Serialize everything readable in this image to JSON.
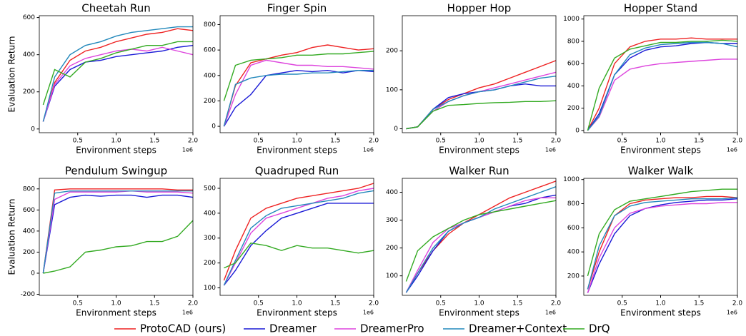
{
  "legend": [
    {
      "name": "ProtoCAD (ours)",
      "color": "#ee2222"
    },
    {
      "name": "Dreamer",
      "color": "#1a1ad6"
    },
    {
      "name": "DreamerPro",
      "color": "#dd44dd"
    },
    {
      "name": "Dreamer+Context",
      "color": "#2288bb"
    },
    {
      "name": "DrQ",
      "color": "#33aa22"
    }
  ],
  "chart_data": [
    {
      "type": "line",
      "title": "Cheetah Run",
      "xlabel": "Environment steps",
      "x_offset_label": "1e6",
      "ylabel": "Evaluation Return",
      "x": [
        0.05,
        0.2,
        0.4,
        0.6,
        0.8,
        1.0,
        1.2,
        1.4,
        1.6,
        1.8,
        2.0
      ],
      "xlim": [
        0,
        2.0
      ],
      "xticks": [
        0.5,
        {
          "value": 1,
          "label": "1.0"
        },
        1.5,
        {
          "value": 2,
          "label": "2.0"
        }
      ],
      "ylim": [
        -20,
        610
      ],
      "yticks": [
        0,
        200,
        400,
        600
      ],
      "series": [
        {
          "values": [
            40,
            250,
            370,
            420,
            440,
            470,
            490,
            510,
            520,
            540,
            530
          ]
        },
        {
          "values": [
            40,
            230,
            320,
            360,
            370,
            390,
            400,
            410,
            420,
            440,
            450
          ]
        },
        {
          "values": [
            40,
            240,
            340,
            380,
            400,
            420,
            430,
            420,
            440,
            420,
            400
          ]
        },
        {
          "values": [
            40,
            280,
            400,
            450,
            470,
            500,
            520,
            530,
            540,
            550,
            550
          ]
        },
        {
          "values": [
            130,
            320,
            280,
            360,
            380,
            410,
            430,
            450,
            450,
            470,
            470
          ]
        }
      ]
    },
    {
      "type": "line",
      "title": "Finger Spin",
      "xlabel": "Environment steps",
      "x_offset_label": "1e6",
      "x": [
        0.05,
        0.2,
        0.4,
        0.6,
        0.8,
        1.0,
        1.2,
        1.4,
        1.6,
        1.8,
        2.0
      ],
      "xlim": [
        0,
        2.0
      ],
      "xticks": [
        0.5,
        {
          "value": 1,
          "label": "1.0"
        },
        1.5,
        {
          "value": 2,
          "label": "2.0"
        }
      ],
      "ylim": [
        -50,
        870
      ],
      "yticks": [
        0,
        200,
        400,
        600,
        800
      ],
      "series": [
        {
          "values": [
            0,
            320,
            500,
            530,
            560,
            580,
            620,
            640,
            620,
            600,
            610
          ]
        },
        {
          "values": [
            0,
            150,
            250,
            400,
            420,
            440,
            430,
            440,
            420,
            440,
            430
          ]
        },
        {
          "values": [
            0,
            250,
            480,
            520,
            500,
            480,
            480,
            470,
            470,
            460,
            450
          ]
        },
        {
          "values": [
            0,
            330,
            380,
            400,
            410,
            410,
            420,
            420,
            430,
            440,
            440
          ]
        },
        {
          "values": [
            200,
            480,
            520,
            530,
            540,
            560,
            560,
            570,
            570,
            580,
            590
          ]
        }
      ]
    },
    {
      "type": "line",
      "title": "Hopper Hop",
      "xlabel": "Environment steps",
      "x_offset_label": "1e6",
      "x": [
        0.05,
        0.2,
        0.4,
        0.6,
        0.8,
        1.0,
        1.2,
        1.4,
        1.6,
        1.8,
        2.0
      ],
      "xlim": [
        0,
        2.0
      ],
      "xticks": [
        0.5,
        {
          "value": 1,
          "label": "1.0"
        },
        1.5,
        {
          "value": 2,
          "label": "2.0"
        }
      ],
      "ylim": [
        -10,
        290
      ],
      "yticks": [
        0,
        100,
        200
      ],
      "series": [
        {
          "values": [
            0,
            5,
            50,
            75,
            90,
            105,
            115,
            130,
            145,
            160,
            175
          ]
        },
        {
          "values": [
            0,
            5,
            50,
            80,
            90,
            95,
            100,
            110,
            115,
            110,
            110
          ]
        },
        {
          "values": [
            0,
            5,
            45,
            70,
            85,
            95,
            105,
            115,
            125,
            135,
            145
          ]
        },
        {
          "values": [
            0,
            5,
            50,
            70,
            85,
            95,
            100,
            110,
            120,
            130,
            135
          ]
        },
        {
          "values": [
            0,
            5,
            45,
            60,
            62,
            65,
            67,
            68,
            70,
            70,
            72
          ]
        }
      ]
    },
    {
      "type": "line",
      "title": "Hopper Stand",
      "xlabel": "Environment steps",
      "x_offset_label": "1e6",
      "x": [
        0.05,
        0.2,
        0.4,
        0.6,
        0.8,
        1.0,
        1.2,
        1.4,
        1.6,
        1.8,
        2.0
      ],
      "xlim": [
        0,
        2.0
      ],
      "xticks": [
        0.5,
        {
          "value": 1,
          "label": "1.0"
        },
        1.5,
        {
          "value": 2,
          "label": "2.0"
        }
      ],
      "ylim": [
        -20,
        1030
      ],
      "yticks": [
        0,
        200,
        400,
        600,
        800,
        1000
      ],
      "series": [
        {
          "values": [
            0,
            200,
            600,
            750,
            800,
            820,
            820,
            830,
            820,
            820,
            820
          ]
        },
        {
          "values": [
            0,
            150,
            500,
            650,
            720,
            750,
            760,
            780,
            790,
            780,
            780
          ]
        },
        {
          "values": [
            0,
            120,
            450,
            550,
            580,
            600,
            610,
            620,
            630,
            640,
            640
          ]
        },
        {
          "values": [
            0,
            130,
            500,
            680,
            740,
            770,
            780,
            790,
            790,
            780,
            750
          ]
        },
        {
          "values": [
            0,
            380,
            650,
            730,
            760,
            790,
            790,
            800,
            800,
            810,
            800
          ]
        }
      ]
    },
    {
      "type": "line",
      "title": "Pendulum Swingup",
      "xlabel": "Environment steps",
      "x_offset_label": "1e6",
      "ylabel": "Evaluation Return",
      "x": [
        0.05,
        0.2,
        0.4,
        0.6,
        0.8,
        1.0,
        1.2,
        1.4,
        1.6,
        1.8,
        2.0
      ],
      "xlim": [
        0,
        2.0
      ],
      "xticks": [
        0.5,
        {
          "value": 1,
          "label": "1.0"
        },
        1.5,
        {
          "value": 2,
          "label": "2.0"
        }
      ],
      "ylim": [
        -210,
        900
      ],
      "yticks": [
        -200,
        0,
        200,
        400,
        600,
        800
      ],
      "series": [
        {
          "values": [
            0,
            790,
            800,
            800,
            800,
            800,
            800,
            800,
            800,
            790,
            790
          ]
        },
        {
          "values": [
            0,
            650,
            720,
            740,
            730,
            740,
            740,
            720,
            740,
            740,
            720
          ]
        },
        {
          "values": [
            0,
            700,
            770,
            770,
            770,
            770,
            780,
            770,
            770,
            770,
            760
          ]
        },
        {
          "values": [
            0,
            760,
            780,
            780,
            780,
            780,
            780,
            780,
            780,
            780,
            780
          ]
        },
        {
          "values": [
            0,
            20,
            60,
            200,
            220,
            250,
            260,
            300,
            300,
            350,
            500
          ]
        }
      ]
    },
    {
      "type": "line",
      "title": "Quadruped Run",
      "xlabel": "Environment steps",
      "x_offset_label": "1e6",
      "x": [
        0.05,
        0.2,
        0.4,
        0.6,
        0.8,
        1.0,
        1.2,
        1.4,
        1.6,
        1.8,
        2.0
      ],
      "xlim": [
        0,
        2.0
      ],
      "xticks": [
        0.5,
        {
          "value": 1,
          "label": "1.0"
        },
        1.5,
        {
          "value": 2,
          "label": "2.0"
        }
      ],
      "ylim": [
        70,
        540
      ],
      "yticks": [
        100,
        200,
        300,
        400,
        500
      ],
      "series": [
        {
          "values": [
            130,
            250,
            380,
            420,
            440,
            460,
            470,
            480,
            490,
            500,
            520
          ]
        },
        {
          "values": [
            110,
            170,
            270,
            330,
            380,
            400,
            420,
            440,
            440,
            440,
            440
          ]
        },
        {
          "values": [
            110,
            200,
            320,
            380,
            400,
            420,
            440,
            460,
            470,
            490,
            500
          ]
        },
        {
          "values": [
            110,
            210,
            340,
            390,
            420,
            430,
            440,
            450,
            460,
            480,
            490
          ]
        },
        {
          "values": [
            180,
            200,
            280,
            270,
            250,
            270,
            260,
            260,
            250,
            240,
            250
          ]
        }
      ]
    },
    {
      "type": "line",
      "title": "Walker Run",
      "xlabel": "Environment steps",
      "x_offset_label": "1e6",
      "x": [
        0.05,
        0.2,
        0.4,
        0.6,
        0.8,
        1.0,
        1.2,
        1.4,
        1.6,
        1.8,
        2.0
      ],
      "xlim": [
        0,
        2.0
      ],
      "xticks": [
        0.5,
        {
          "value": 1,
          "label": "1.0"
        },
        1.5,
        {
          "value": 2,
          "label": "2.0"
        }
      ],
      "ylim": [
        30,
        450
      ],
      "yticks": [
        100,
        200,
        300,
        400
      ],
      "series": [
        {
          "values": [
            40,
            110,
            190,
            250,
            290,
            320,
            350,
            380,
            400,
            420,
            440
          ]
        },
        {
          "values": [
            40,
            100,
            190,
            260,
            290,
            310,
            330,
            350,
            360,
            380,
            390
          ]
        },
        {
          "values": [
            40,
            120,
            220,
            270,
            290,
            310,
            330,
            350,
            370,
            380,
            380
          ]
        },
        {
          "values": [
            40,
            110,
            200,
            260,
            290,
            310,
            340,
            360,
            380,
            400,
            420
          ]
        },
        {
          "values": [
            80,
            190,
            240,
            270,
            300,
            320,
            330,
            340,
            350,
            360,
            370
          ]
        }
      ]
    },
    {
      "type": "line",
      "title": "Walker Walk",
      "xlabel": "Environment steps",
      "x_offset_label": "1e6",
      "x": [
        0.05,
        0.2,
        0.4,
        0.6,
        0.8,
        1.0,
        1.2,
        1.4,
        1.6,
        1.8,
        2.0
      ],
      "xlim": [
        0,
        2.0
      ],
      "xticks": [
        0.5,
        {
          "value": 1,
          "label": "1.0"
        },
        1.5,
        {
          "value": 2,
          "label": "2.0"
        }
      ],
      "ylim": [
        40,
        1010
      ],
      "yticks": [
        200,
        400,
        600,
        800,
        1000
      ],
      "series": [
        {
          "values": [
            90,
            400,
            700,
            800,
            830,
            840,
            850,
            850,
            860,
            860,
            850
          ]
        },
        {
          "values": [
            60,
            300,
            550,
            700,
            760,
            790,
            810,
            820,
            830,
            830,
            840
          ]
        },
        {
          "values": [
            60,
            350,
            600,
            720,
            760,
            780,
            790,
            800,
            800,
            810,
            810
          ]
        },
        {
          "values": [
            90,
            450,
            700,
            780,
            810,
            820,
            830,
            840,
            840,
            840,
            850
          ]
        },
        {
          "values": [
            200,
            550,
            750,
            820,
            840,
            860,
            880,
            900,
            910,
            920,
            920
          ]
        }
      ]
    }
  ]
}
